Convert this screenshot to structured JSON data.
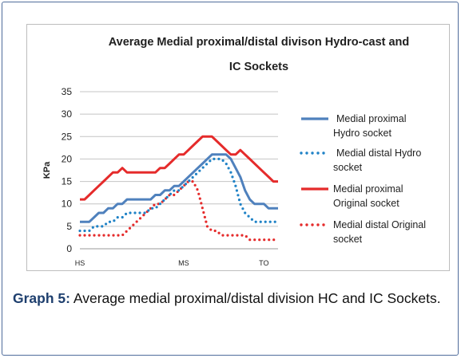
{
  "caption": {
    "label": "Graph 5:",
    "text": "Average medial proximal/distal division HC and IC Sockets."
  },
  "chart_data": {
    "type": "line",
    "title_line1": "Average Medial proximal/distal divison Hydro-cast and",
    "title_line2": "IC Sockets",
    "ylabel": "KPa",
    "ylim": [
      0,
      35
    ],
    "yticks": [
      0,
      5,
      10,
      15,
      20,
      25,
      30,
      35
    ],
    "x_tick_labels": [
      {
        "label": "HS",
        "index": 0
      },
      {
        "label": "MS",
        "index": 22
      },
      {
        "label": "TO",
        "index": 39
      }
    ],
    "grid": "horizontal",
    "legend_position": "right",
    "series": [
      {
        "name_line1": "Medial proximal",
        "name_line2": "Hydro socket",
        "color": "#4f81bd",
        "style": "solid",
        "values": [
          6,
          6,
          6,
          7,
          8,
          8,
          9,
          9,
          10,
          10,
          11,
          11,
          11,
          11,
          11,
          11,
          12,
          12,
          13,
          13,
          14,
          14,
          15,
          16,
          17,
          18,
          19,
          20,
          21,
          21,
          21,
          21,
          20,
          18,
          16,
          13,
          11,
          10,
          10,
          10,
          9,
          9,
          9
        ]
      },
      {
        "name_line1": "Medial distal Hydro",
        "name_line2": "socket",
        "color": "#1f82c6",
        "style": "dotted",
        "values": [
          4,
          4,
          4,
          5,
          5,
          5,
          6,
          6,
          7,
          7,
          8,
          8,
          8,
          8,
          8,
          9,
          9,
          10,
          11,
          12,
          13,
          13,
          14,
          15,
          16,
          17,
          18,
          19,
          20,
          20,
          20,
          19,
          17,
          14,
          10,
          8,
          7,
          6,
          6,
          6,
          6,
          6,
          6
        ]
      },
      {
        "name_line1": "Medial proximal",
        "name_line2": "Original socket",
        "color": "#e52b2b",
        "style": "solid",
        "values": [
          11,
          11,
          12,
          13,
          14,
          15,
          16,
          17,
          17,
          18,
          17,
          17,
          17,
          17,
          17,
          17,
          17,
          18,
          18,
          19,
          20,
          21,
          21,
          22,
          23,
          24,
          25,
          25,
          25,
          24,
          23,
          22,
          21,
          21,
          22,
          21,
          20,
          19,
          18,
          17,
          16,
          15,
          15
        ]
      },
      {
        "name_line1": "Medial distal Original",
        "name_line2": "socket",
        "color": "#e52b2b",
        "style": "dotted",
        "values": [
          3,
          3,
          3,
          3,
          3,
          3,
          3,
          3,
          3,
          3,
          4,
          5,
          6,
          7,
          8,
          9,
          10,
          10,
          11,
          12,
          12,
          13,
          14,
          15,
          15,
          13,
          9,
          5,
          4,
          4,
          3,
          3,
          3,
          3,
          3,
          3,
          2,
          2,
          2,
          2,
          2,
          2,
          2
        ]
      }
    ]
  }
}
